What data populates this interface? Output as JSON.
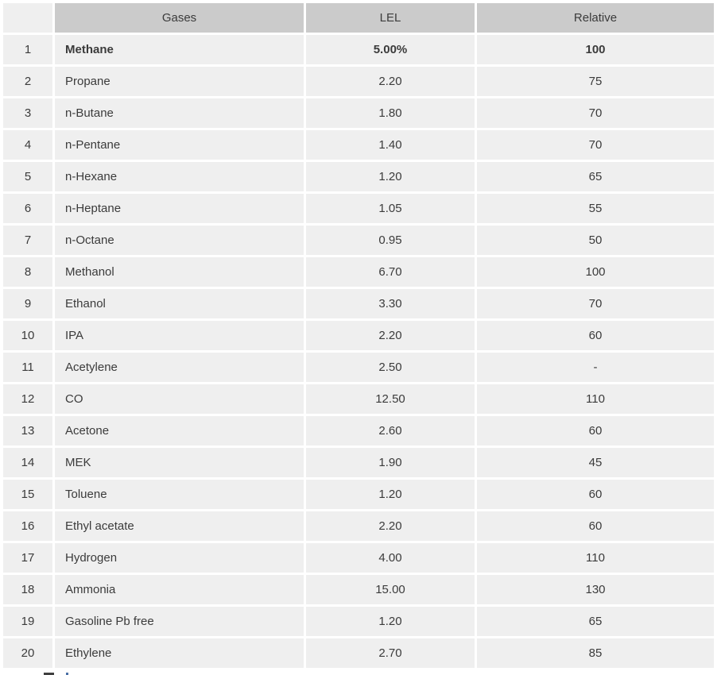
{
  "colors": {
    "header_bg": "#cbcbcb",
    "row_bg": "#efefef",
    "page_bg": "#ffffff",
    "text": "#3b3b3b"
  },
  "table": {
    "headers": {
      "index": "",
      "gas": "Gases",
      "lel": "LEL",
      "relative": "Relative"
    },
    "rows": [
      {
        "index": "1",
        "gas": "Methane",
        "lel": "5.00%",
        "relative": "100",
        "bold": true
      },
      {
        "index": "2",
        "gas": "Propane",
        "lel": "2.20",
        "relative": "75",
        "bold": false
      },
      {
        "index": "3",
        "gas": "n-Butane",
        "lel": "1.80",
        "relative": "70",
        "bold": false
      },
      {
        "index": "4",
        "gas": "n-Pentane",
        "lel": "1.40",
        "relative": "70",
        "bold": false
      },
      {
        "index": "5",
        "gas": "n-Hexane",
        "lel": "1.20",
        "relative": "65",
        "bold": false
      },
      {
        "index": "6",
        "gas": "n-Heptane",
        "lel": "1.05",
        "relative": "55",
        "bold": false
      },
      {
        "index": "7",
        "gas": "n-Octane",
        "lel": "0.95",
        "relative": "50",
        "bold": false
      },
      {
        "index": "8",
        "gas": "Methanol",
        "lel": "6.70",
        "relative": "100",
        "bold": false
      },
      {
        "index": "9",
        "gas": "Ethanol",
        "lel": "3.30",
        "relative": "70",
        "bold": false
      },
      {
        "index": "10",
        "gas": "IPA",
        "lel": "2.20",
        "relative": "60",
        "bold": false
      },
      {
        "index": "11",
        "gas": "Acetylene",
        "lel": "2.50",
        "relative": "-",
        "bold": false
      },
      {
        "index": "12",
        "gas": "CO",
        "lel": "12.50",
        "relative": "110",
        "bold": false
      },
      {
        "index": "13",
        "gas": "Acetone",
        "lel": "2.60",
        "relative": "60",
        "bold": false
      },
      {
        "index": "14",
        "gas": "MEK",
        "lel": "1.90",
        "relative": "45",
        "bold": false
      },
      {
        "index": "15",
        "gas": "Toluene",
        "lel": "1.20",
        "relative": "60",
        "bold": false
      },
      {
        "index": "16",
        "gas": "Ethyl acetate",
        "lel": "2.20",
        "relative": "60",
        "bold": false
      },
      {
        "index": "17",
        "gas": "Hydrogen",
        "lel": "4.00",
        "relative": "110",
        "bold": false
      },
      {
        "index": "18",
        "gas": "Ammonia",
        "lel": "15.00",
        "relative": "130",
        "bold": false
      },
      {
        "index": "19",
        "gas": "Gasoline Pb free",
        "lel": "1.20",
        "relative": "65",
        "bold": false
      },
      {
        "index": "20",
        "gas": "Ethylene",
        "lel": "2.70",
        "relative": "85",
        "bold": false
      }
    ]
  }
}
